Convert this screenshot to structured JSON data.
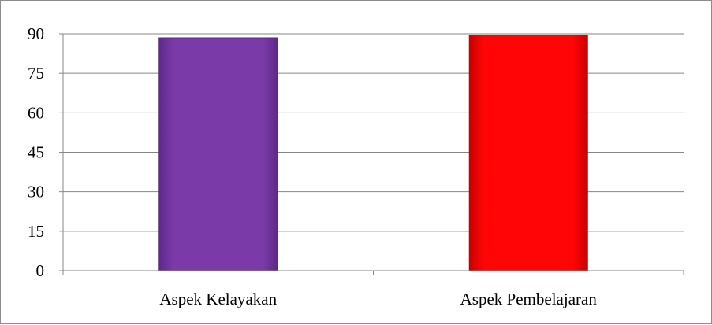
{
  "chart_data": {
    "type": "bar",
    "categories": [
      "Aspek Kelayakan",
      "Aspek Pembelajaran"
    ],
    "values": [
      88.5,
      89.5
    ],
    "ylim": [
      0,
      90
    ],
    "yticks": [
      0,
      15,
      30,
      45,
      60,
      75,
      90
    ],
    "ytick_labels": [
      "0",
      "15",
      "30",
      "45",
      "60",
      "75",
      "90"
    ],
    "grid": true,
    "legend": "none",
    "bar_colors": [
      "#7a3aa8",
      "#ff0505"
    ],
    "bar_edge_colors": [
      "#5b2a80",
      "#c00000"
    ]
  }
}
